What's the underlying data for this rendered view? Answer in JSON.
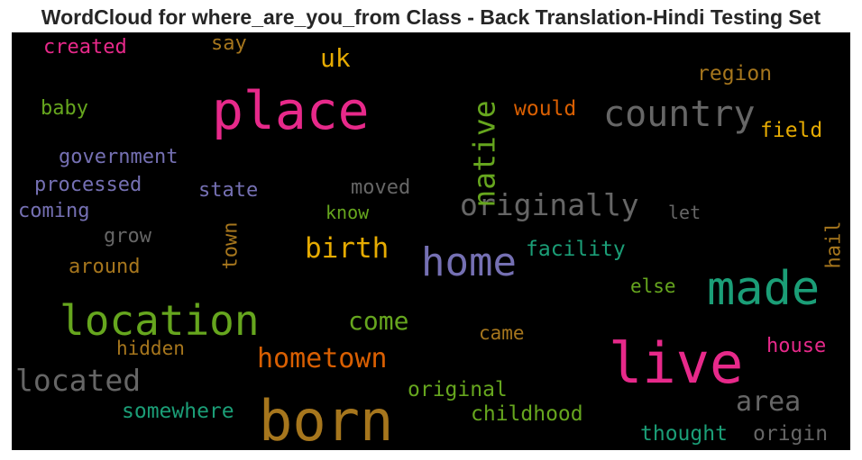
{
  "chart_data": {
    "type": "wordcloud",
    "title": "WordCloud for where_are_you_from Class - Back Translation-Hindi Testing Set",
    "background": "#000000",
    "words": [
      {
        "text": "born",
        "color": "#a6761d"
      },
      {
        "text": "place",
        "color": "#e7298a"
      },
      {
        "text": "live",
        "color": "#e7298a"
      },
      {
        "text": "made",
        "color": "#1b9e77"
      },
      {
        "text": "location",
        "color": "#66a61e"
      },
      {
        "text": "home",
        "color": "#7570b3"
      },
      {
        "text": "country",
        "color": "#666666"
      },
      {
        "text": "originally",
        "color": "#666666"
      },
      {
        "text": "native",
        "color": "#66a61e"
      },
      {
        "text": "birth",
        "color": "#e6ab02"
      },
      {
        "text": "hometown",
        "color": "#d95f02"
      },
      {
        "text": "located",
        "color": "#666666"
      },
      {
        "text": "area",
        "color": "#666666"
      },
      {
        "text": "come",
        "color": "#66a61e"
      },
      {
        "text": "uk",
        "color": "#e6ab02"
      },
      {
        "text": "region",
        "color": "#a6761d"
      },
      {
        "text": "would",
        "color": "#d95f02"
      },
      {
        "text": "field",
        "color": "#e6ab02"
      },
      {
        "text": "facility",
        "color": "#1b9e77"
      },
      {
        "text": "original",
        "color": "#66a61e"
      },
      {
        "text": "childhood",
        "color": "#66a61e"
      },
      {
        "text": "thought",
        "color": "#1b9e77"
      },
      {
        "text": "origin",
        "color": "#666666"
      },
      {
        "text": "somewhere",
        "color": "#1b9e77"
      },
      {
        "text": "house",
        "color": "#e7298a"
      },
      {
        "text": "hail",
        "color": "#a6761d"
      },
      {
        "text": "government",
        "color": "#7570b3"
      },
      {
        "text": "processed",
        "color": "#7570b3"
      },
      {
        "text": "state",
        "color": "#7570b3"
      },
      {
        "text": "coming",
        "color": "#7570b3"
      },
      {
        "text": "created",
        "color": "#e7298a"
      },
      {
        "text": "baby",
        "color": "#66a61e"
      },
      {
        "text": "say",
        "color": "#a6761d"
      },
      {
        "text": "moved",
        "color": "#666666"
      },
      {
        "text": "know",
        "color": "#66a61e"
      },
      {
        "text": "let",
        "color": "#666666"
      },
      {
        "text": "grow",
        "color": "#666666"
      },
      {
        "text": "around",
        "color": "#a6761d"
      },
      {
        "text": "town",
        "color": "#a6761d"
      },
      {
        "text": "else",
        "color": "#66a61e"
      },
      {
        "text": "came",
        "color": "#a6761d"
      },
      {
        "text": "hidden",
        "color": "#a6761d"
      }
    ]
  }
}
